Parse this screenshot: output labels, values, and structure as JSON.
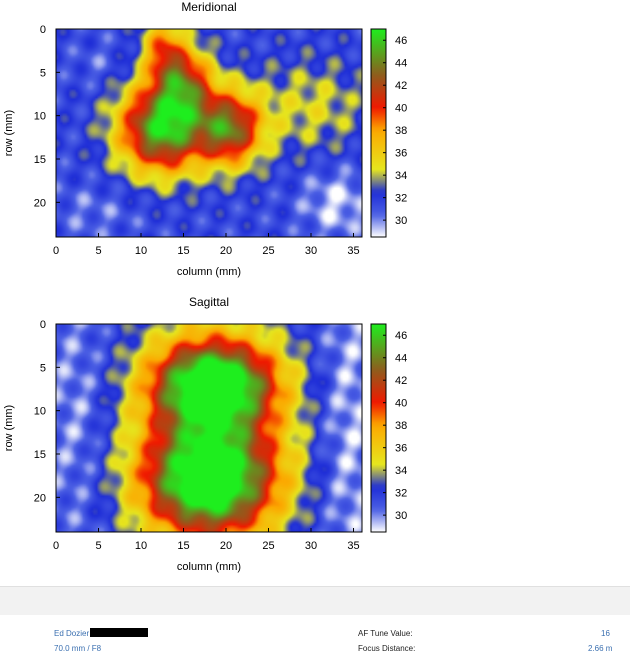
{
  "chart_data": [
    {
      "type": "heatmap",
      "title": "Meridional",
      "xlabel": "column (mm)",
      "ylabel": "row (mm)",
      "xlim": [
        0,
        36
      ],
      "ylim": [
        24,
        0
      ],
      "xticks": [
        0,
        5,
        10,
        15,
        20,
        25,
        30,
        35
      ],
      "yticks": [
        0,
        5,
        10,
        15,
        20
      ],
      "colorbar": {
        "range": [
          28.5,
          47
        ],
        "ticks": [
          30,
          32,
          34,
          36,
          38,
          40,
          42,
          44,
          46
        ]
      },
      "field": {
        "base": 31.5,
        "blobs": [
          {
            "cx": 12.5,
            "cy": 11.5,
            "sx": 3.6,
            "sy": 3.6,
            "a": 14.5
          },
          {
            "cx": 20.5,
            "cy": 11.5,
            "sx": 2.6,
            "sy": 3.0,
            "a": 11.5
          },
          {
            "cx": 15.0,
            "cy": 6.0,
            "sx": 2.3,
            "sy": 3.0,
            "a": 9.0
          },
          {
            "cx": 12.5,
            "cy": 2.0,
            "sx": 1.6,
            "sy": 2.6,
            "a": 6.0
          },
          {
            "cx": 30.0,
            "cy": 9.0,
            "sx": 5.0,
            "sy": 4.0,
            "a": 3.0
          },
          {
            "cx": 33.0,
            "cy": 20.0,
            "sx": 3.0,
            "sy": 3.0,
            "a": -2.5
          },
          {
            "cx": 4.5,
            "cy": 21.0,
            "sx": 4.0,
            "sy": 2.5,
            "a": -1.2
          },
          {
            "cx": 5.0,
            "cy": 4.0,
            "sx": 2.0,
            "sy": 2.0,
            "a": -1.0
          }
        ]
      }
    },
    {
      "type": "heatmap",
      "title": "Sagittal",
      "xlabel": "column (mm)",
      "ylabel": "row (mm)",
      "xlim": [
        0,
        36
      ],
      "ylim": [
        24,
        0
      ],
      "xticks": [
        0,
        5,
        10,
        15,
        20,
        25,
        30,
        35
      ],
      "yticks": [
        0,
        5,
        10,
        15,
        20
      ],
      "colorbar": {
        "range": [
          28.5,
          47
        ],
        "ticks": [
          30,
          32,
          34,
          36,
          38,
          40,
          42,
          44,
          46
        ]
      },
      "field": {
        "base": 30.5,
        "blobs": [
          {
            "cx": 18.5,
            "cy": 7.0,
            "sx": 5.0,
            "sy": 3.5,
            "a": 16.0
          },
          {
            "cx": 18.0,
            "cy": 18.0,
            "sx": 5.4,
            "sy": 4.5,
            "a": 16.0
          },
          {
            "cx": 18.5,
            "cy": 12.0,
            "sx": 8.5,
            "sy": 12.0,
            "a": 5.0
          },
          {
            "cx": 3.0,
            "cy": 11.0,
            "sx": 2.5,
            "sy": 9.0,
            "a": -1.5
          },
          {
            "cx": 34.0,
            "cy": 12.0,
            "sx": 2.5,
            "sy": 12.0,
            "a": -2.0
          }
        ]
      }
    }
  ],
  "footer": {
    "name": "Ed Dozier",
    "lens": "70.0 mm / F8",
    "af_tune_label": "AF Tune Value:",
    "af_tune_value": "16",
    "focus_label": "Focus Distance:",
    "focus_value": "2.66 m"
  },
  "colors": {
    "footer_text": "#3a6fb0",
    "footer_band": "#f2f2f2"
  }
}
